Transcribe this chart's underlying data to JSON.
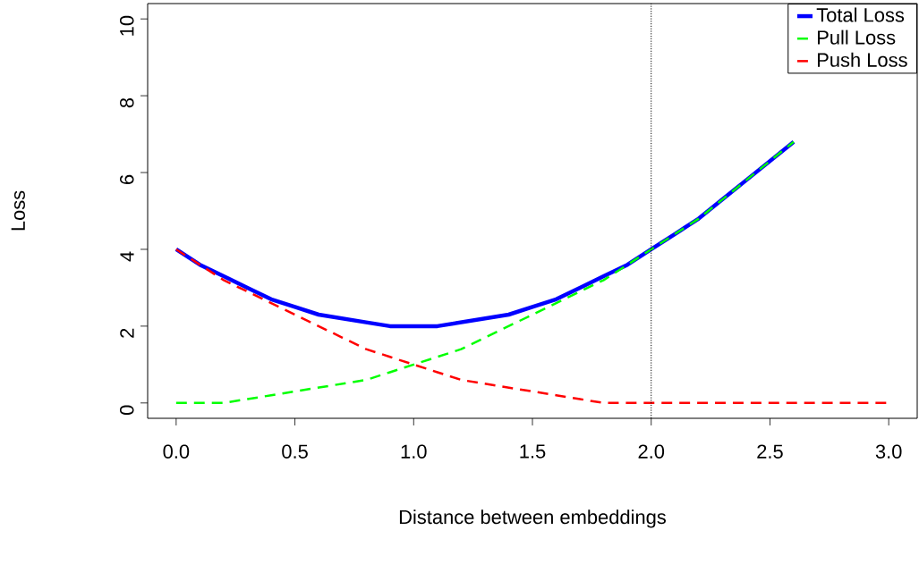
{
  "chart_data": {
    "type": "line",
    "xlabel": "Distance between embeddings",
    "ylabel": "Loss",
    "x": [
      0,
      0.1,
      0.2,
      0.3,
      0.4,
      0.5,
      0.6,
      0.7,
      0.8,
      0.9,
      1.0,
      1.1,
      1.2,
      1.3,
      1.4,
      1.5,
      1.6,
      1.7,
      1.8,
      1.9,
      2.0,
      2.1,
      2.2,
      2.3,
      2.4,
      2.5,
      2.6,
      2.7,
      2.8,
      2.9,
      3.0
    ],
    "series": [
      {
        "name": "Total Loss",
        "color": "#0000ff",
        "line_style": "solid",
        "values": [
          4.0,
          3.6,
          3.3,
          3.0,
          2.7,
          2.5,
          2.3,
          2.2,
          2.1,
          2.0,
          2.0,
          2.0,
          2.1,
          2.2,
          2.3,
          2.5,
          2.7,
          3.0,
          3.3,
          3.6,
          4.0,
          4.4,
          4.8,
          5.3,
          5.8,
          6.3,
          6.8,
          null,
          null,
          null,
          null
        ]
      },
      {
        "name": "Pull Loss",
        "color": "#00ff00",
        "line_style": "dashed",
        "values": [
          0.0,
          0.0,
          0.0,
          0.1,
          0.2,
          0.3,
          0.4,
          0.5,
          0.6,
          0.8,
          1.0,
          1.2,
          1.4,
          1.7,
          2.0,
          2.3,
          2.6,
          2.9,
          3.2,
          3.6,
          4.0,
          4.4,
          4.8,
          5.3,
          5.8,
          6.3,
          6.8,
          null,
          null,
          null,
          null
        ]
      },
      {
        "name": "Push Loss",
        "color": "#ff0000",
        "line_style": "dashed",
        "values": [
          4.0,
          3.6,
          3.2,
          2.9,
          2.6,
          2.3,
          2.0,
          1.7,
          1.4,
          1.2,
          1.0,
          0.8,
          0.6,
          0.5,
          0.4,
          0.3,
          0.2,
          0.1,
          0.0,
          0.0,
          0.0,
          0.0,
          0.0,
          0.0,
          0.0,
          0.0,
          0.0,
          0.0,
          0.0,
          0.0,
          0.0
        ]
      }
    ],
    "xlim": [
      -0.12,
      3.12
    ],
    "ylim": [
      -0.4,
      10.4
    ],
    "xticks": [
      {
        "value": 0,
        "label": "0.0"
      },
      0.5,
      {
        "value": 1,
        "label": "1.0"
      },
      1.5,
      {
        "value": 2,
        "label": "2.0"
      },
      2.5,
      {
        "value": 3,
        "label": "3.0"
      }
    ],
    "yticks": [
      0,
      2,
      4,
      6,
      8,
      10
    ],
    "ref_lines": [
      {
        "axis": "x",
        "value": 2,
        "color": "#000000",
        "line_style": "dotted"
      }
    ],
    "legend": "top right"
  }
}
